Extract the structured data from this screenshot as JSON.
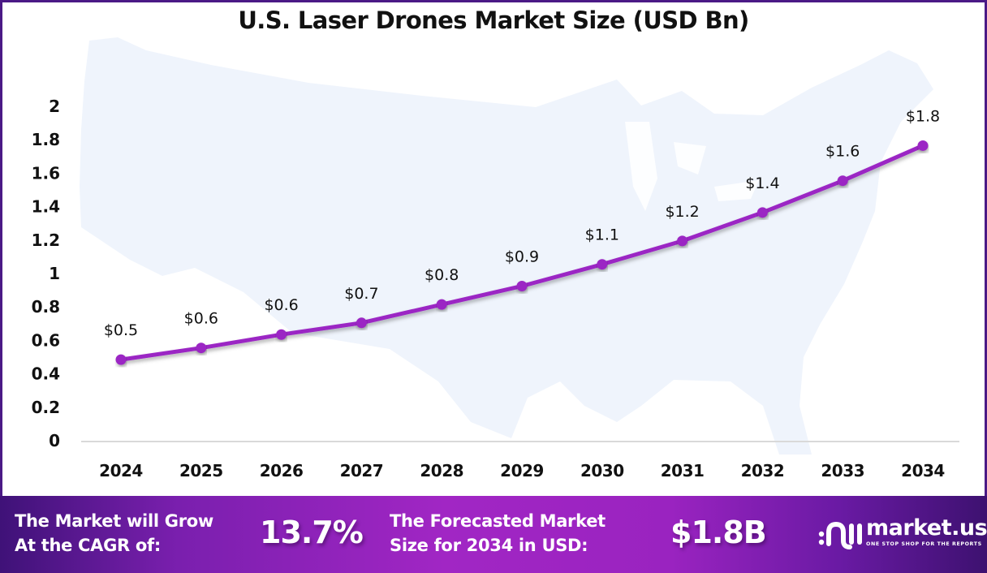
{
  "chart_data": {
    "type": "line",
    "title": "U.S. Laser Drones Market Size (USD Bn)",
    "xlabel": "",
    "ylabel": "",
    "categories": [
      "2024",
      "2025",
      "2026",
      "2027",
      "2028",
      "2029",
      "2030",
      "2031",
      "2032",
      "2033",
      "2034"
    ],
    "series": [
      {
        "name": "Market Size (USD Bn)",
        "values": [
          0.48,
          0.55,
          0.63,
          0.7,
          0.81,
          0.92,
          1.05,
          1.19,
          1.36,
          1.55,
          1.76
        ],
        "labels": [
          "$0.5",
          "$0.6",
          "$0.6",
          "$0.7",
          "$0.8",
          "$0.9",
          "$1.1",
          "$1.2",
          "$1.4",
          "$1.6",
          "$1.8"
        ],
        "color": "#9b27c4"
      }
    ],
    "ylim": [
      0,
      2
    ],
    "yticks": [
      "0",
      "0.2",
      "0.4",
      "0.6",
      "0.8",
      "1",
      "1.2",
      "1.4",
      "1.6",
      "1.8",
      "2"
    ],
    "ytick_values": [
      0,
      0.2,
      0.4,
      0.6,
      0.8,
      1,
      1.2,
      1.4,
      1.6,
      1.8,
      2
    ],
    "grid": false,
    "legend": "none",
    "background": "faint map of the United States"
  },
  "footer": {
    "cagr_label_line1": "The Market will Grow",
    "cagr_label_line2": "At the CAGR of:",
    "cagr_value": "13.7%",
    "forecast_label_line1": "The Forecasted Market",
    "forecast_label_line2": "Size for 2034 in USD:",
    "forecast_value": "$1.8B",
    "brand_name": "market.us",
    "brand_tagline": "ONE STOP SHOP FOR THE REPORTS"
  },
  "colors": {
    "frame": "#4b1a86",
    "line": "#9b27c4",
    "map": "#eff4fc",
    "axis": "#d9d9d9"
  }
}
